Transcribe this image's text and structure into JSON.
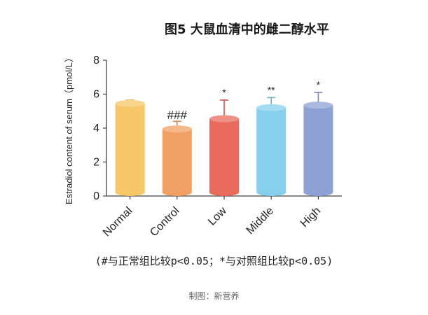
{
  "chart_data": {
    "type": "bar",
    "title": "图5 大鼠血清中的雌二醇水平",
    "ylabel": "Estradiol content of serum（pmol/L）",
    "xlabel": "",
    "ylim": [
      0,
      8
    ],
    "yticks": [
      "0",
      "2",
      "4",
      "6",
      "8"
    ],
    "categories": [
      "Normal",
      "Control",
      "Low",
      "Middle",
      "High"
    ],
    "values": [
      5.45,
      3.95,
      4.55,
      5.2,
      5.35
    ],
    "error": [
      0.2,
      0.45,
      1.1,
      0.6,
      0.75
    ],
    "significance": [
      "",
      "###",
      "*",
      "**",
      "*"
    ],
    "colors": [
      "#f6c766",
      "#f1a063",
      "#e86b5c",
      "#86d0ee",
      "#8ea1d4"
    ],
    "grid": false
  },
  "footnote": "(#与正常组比较p<0.05；*与对照组比较p<0.05)",
  "credit": "制图：新营养"
}
